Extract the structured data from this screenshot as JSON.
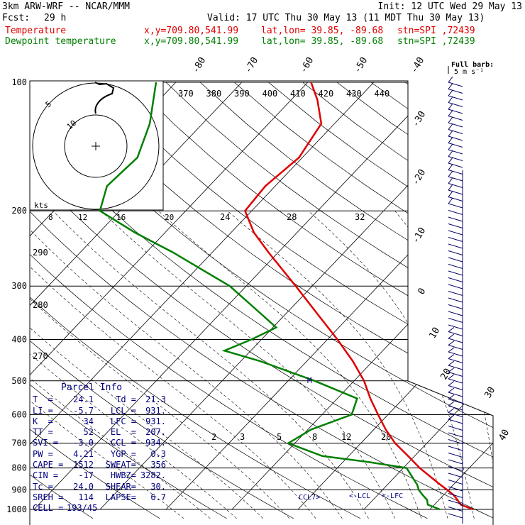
{
  "header": {
    "model": "3km ARW-WRF -- NCAR/MMM",
    "init": "Init: 12 UTC Wed 29 May 13",
    "fcst_label": "Fcst:",
    "fcst_value": "29 h",
    "valid": "Valid: 17 UTC Thu 30 May 13 (11 MDT Thu 30 May 13)",
    "temp_label": "Temperature",
    "dew_label": "Dewpoint temperature",
    "xy": "x,y=709.80,541.99",
    "latlon": "lat,lon= 39.85, -89.68",
    "stn": "stn=SPI ,72439"
  },
  "barb_legend": {
    "title": "Full barb:",
    "value": "5 m s⁻¹"
  },
  "hodograph": {
    "ring_labels": [
      "5",
      "10"
    ],
    "units": "kts",
    "mixing_ratio_labels": [
      "8",
      "12",
      "16",
      "20"
    ]
  },
  "parcel_info": {
    "title": "Parcel Info",
    "rows": [
      [
        "T  =",
        "24.1",
        "Td =",
        "21.3"
      ],
      [
        "LI =",
        "-5.7",
        "LCL =",
        "931."
      ],
      [
        "K  =",
        "34",
        "LFC =",
        "931."
      ],
      [
        "TT =",
        "52",
        "EL  =",
        "207."
      ],
      [
        "SVI =",
        "-3.0",
        "CCL =",
        "934."
      ],
      [
        "PW =",
        "4.21",
        "YGP =",
        "0.3"
      ],
      [
        "CAPE =",
        "1512",
        "SWEAT=",
        "356"
      ],
      [
        "CIN =",
        "-17",
        "HWBZ=",
        "3282."
      ],
      [
        "Tc =",
        "24.0",
        "SHEAR=",
        "30."
      ],
      [
        "SREH =",
        "114",
        "LAPSE=",
        "6.7"
      ],
      [
        "CELL =",
        "193/45",
        "",
        ""
      ]
    ]
  },
  "level_markers": {
    "ccl": "CCL",
    "lcl": "LCL",
    "lfc": "LFC",
    "m": "M"
  },
  "chart_data": {
    "type": "line",
    "y_axis": {
      "scale": "log-pressure",
      "units": "hPa",
      "range": [
        1000,
        100
      ],
      "ticks": [
        100,
        200,
        300,
        400,
        500,
        600,
        700,
        800,
        900,
        1000
      ]
    },
    "isotherm_labels": [
      -80,
      -70,
      -60,
      -50,
      -40,
      -30,
      -20,
      -10,
      0,
      10,
      20,
      30,
      40
    ],
    "theta_labels_top": [
      370,
      380,
      390,
      400,
      410,
      420,
      430,
      440
    ],
    "theta_labels_left": [
      290,
      280,
      270
    ],
    "theta_e_labels": [
      "24",
      "28",
      "32"
    ],
    "mixing_labels_low": [
      "2",
      "3",
      "5",
      "8",
      "12",
      "20"
    ],
    "series": [
      {
        "name": "Temperature",
        "color": "#e00000",
        "points": [
          [
            1000,
            26.5
          ],
          [
            975,
            24.0
          ],
          [
            950,
            22.8
          ],
          [
            925,
            21.5
          ],
          [
            900,
            19.8
          ],
          [
            875,
            18.0
          ],
          [
            850,
            16.2
          ],
          [
            800,
            12.5
          ],
          [
            750,
            9.0
          ],
          [
            700,
            5.2
          ],
          [
            650,
            1.8
          ],
          [
            600,
            -1.5
          ],
          [
            550,
            -5.0
          ],
          [
            500,
            -8.5
          ],
          [
            450,
            -13.0
          ],
          [
            400,
            -18.5
          ],
          [
            350,
            -25.0
          ],
          [
            300,
            -32.5
          ],
          [
            250,
            -41.5
          ],
          [
            225,
            -46.5
          ],
          [
            200,
            -51.0
          ],
          [
            175,
            -51.5
          ],
          [
            150,
            -50.5
          ],
          [
            125,
            -52.0
          ],
          [
            110,
            -56.0
          ],
          [
            100,
            -59.5
          ]
        ]
      },
      {
        "name": "Dewpoint temperature",
        "color": "#008000",
        "points": [
          [
            1000,
            21.5
          ],
          [
            975,
            19.0
          ],
          [
            950,
            18.2
          ],
          [
            925,
            16.8
          ],
          [
            900,
            15.5
          ],
          [
            875,
            14.5
          ],
          [
            850,
            13.2
          ],
          [
            800,
            10.5
          ],
          [
            775,
            4.0
          ],
          [
            750,
            -4.0
          ],
          [
            700,
            -11.0
          ],
          [
            650,
            -9.5
          ],
          [
            600,
            -5.5
          ],
          [
            550,
            -7.0
          ],
          [
            500,
            -16.0
          ],
          [
            450,
            -27.0
          ],
          [
            425,
            -34.0
          ],
          [
            400,
            -31.5
          ],
          [
            375,
            -29.5
          ],
          [
            350,
            -33.5
          ],
          [
            300,
            -42.5
          ],
          [
            250,
            -56.0
          ],
          [
            225,
            -64.5
          ],
          [
            200,
            -73.0
          ],
          [
            175,
            -75.5
          ],
          [
            150,
            -75.0
          ],
          [
            125,
            -78.0
          ],
          [
            100,
            -83.0
          ]
        ]
      }
    ]
  }
}
